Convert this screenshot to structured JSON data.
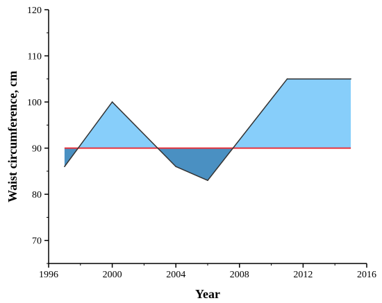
{
  "chart_data": {
    "type": "area",
    "xlabel": "Year",
    "ylabel": "Waist circumference, cm",
    "xlim": [
      1996,
      2016
    ],
    "ylim": [
      65,
      120
    ],
    "x_ticks": [
      1996,
      2000,
      2004,
      2008,
      2012,
      2016
    ],
    "y_ticks": [
      70,
      80,
      90,
      100,
      110,
      120
    ],
    "grid": false,
    "series": [
      {
        "x": [
          1997,
          2000,
          2004,
          2006,
          2011,
          2015
        ],
        "y": [
          86,
          100,
          86,
          83,
          105,
          105
        ],
        "color": "#333333"
      }
    ],
    "reference_line": {
      "y": 90,
      "x_range": [
        1997,
        2015
      ],
      "color": "#e8303a"
    },
    "fill_above_color": "#87cefa",
    "fill_below_color": "#4a90c2"
  }
}
